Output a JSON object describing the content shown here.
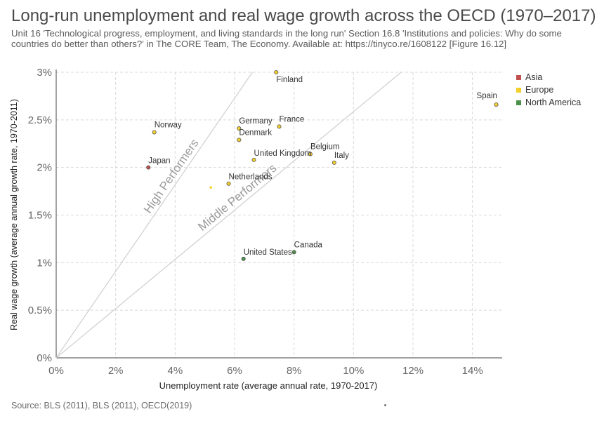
{
  "header": {
    "title": "Long-run unemployment and real wage growth across the OECD (1970–2017)",
    "subtitle": "Unit 16 'Technological progress, employment, and living standards in the long run' Section 16.8 'Institutions and policies: Why do some countries do better than others?' in The CORE Team, The Economy. Available at: https://tinyco.re/1608122 [Figure 16.12]"
  },
  "footer": {
    "source": "Source: BLS (2011), BLS (2011), OECD(2019)"
  },
  "chart_data": {
    "type": "scatter",
    "xlabel": "Unemployment rate (average annual rate, 1970-2017)",
    "ylabel": "Real wage growth (average annual growth rate, 1970-2011)",
    "xlim": [
      0,
      15
    ],
    "ylim": [
      0,
      3
    ],
    "x_ticks": [
      0,
      2,
      4,
      6,
      8,
      10,
      12,
      14
    ],
    "x_tick_labels": [
      "0%",
      "2%",
      "4%",
      "6%",
      "8%",
      "10%",
      "12%",
      "14%"
    ],
    "y_ticks": [
      0,
      0.5,
      1,
      1.5,
      2,
      2.5,
      3
    ],
    "y_tick_labels": [
      "0%",
      "0.5%",
      "1%",
      "1.5%",
      "2%",
      "2.5%",
      "3%"
    ],
    "grid": true,
    "legend_position": "right",
    "legend": [
      {
        "name": "Asia",
        "color": "#c0504d"
      },
      {
        "name": "Europe",
        "color": "#f2cf2b"
      },
      {
        "name": "North America",
        "color": "#4a8f4a"
      }
    ],
    "points": [
      {
        "label": "Finland",
        "x": 7.4,
        "y": 3.0,
        "region": "Europe"
      },
      {
        "label": "Spain",
        "x": 14.8,
        "y": 2.66,
        "region": "Europe"
      },
      {
        "label": "Germany",
        "x": 6.15,
        "y": 2.41,
        "region": "Europe"
      },
      {
        "label": "France",
        "x": 7.5,
        "y": 2.43,
        "region": "Europe"
      },
      {
        "label": "Norway",
        "x": 3.3,
        "y": 2.37,
        "region": "Europe"
      },
      {
        "label": "Denmark",
        "x": 6.15,
        "y": 2.29,
        "region": "Europe"
      },
      {
        "label": "Belgium",
        "x": 8.55,
        "y": 2.14,
        "region": "Europe"
      },
      {
        "label": "United Kingdom",
        "x": 6.65,
        "y": 2.08,
        "region": "Europe"
      },
      {
        "label": "Italy",
        "x": 9.35,
        "y": 2.05,
        "region": "Europe"
      },
      {
        "label": "Japan",
        "x": 3.1,
        "y": 2.0,
        "region": "Asia"
      },
      {
        "label": "Netherlands",
        "x": 5.8,
        "y": 1.83,
        "region": "Europe"
      },
      {
        "label": "",
        "x": 5.2,
        "y": 1.79,
        "region": "Europe"
      },
      {
        "label": "Canada",
        "x": 8.0,
        "y": 1.11,
        "region": "North America"
      },
      {
        "label": "United States",
        "x": 6.3,
        "y": 1.04,
        "region": "North America"
      }
    ],
    "reference_lines": [
      {
        "label": "High Performers",
        "from": [
          0,
          0
        ],
        "to": [
          6.6,
          3.0
        ]
      },
      {
        "label": "Middle Performers",
        "from": [
          0,
          0
        ],
        "to": [
          11.6,
          3.0
        ]
      }
    ]
  }
}
